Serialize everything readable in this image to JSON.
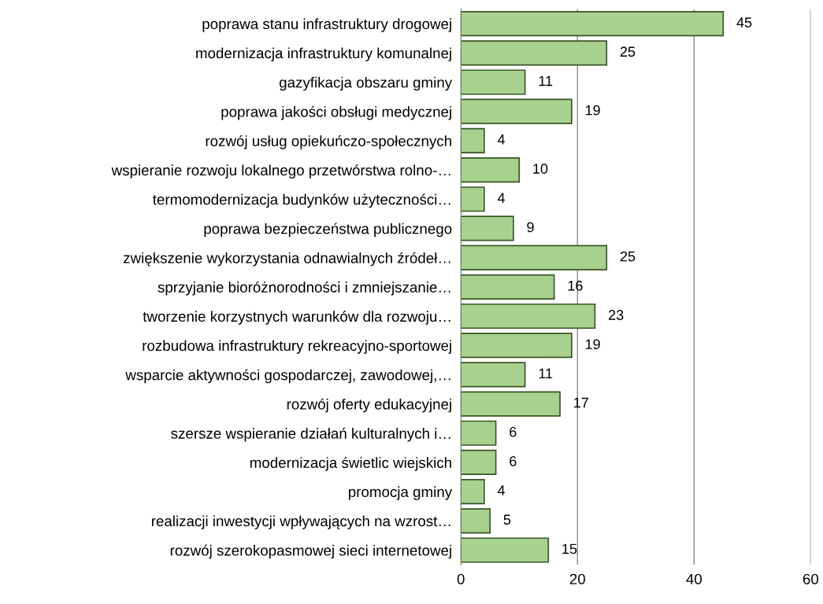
{
  "chart_data": {
    "type": "bar",
    "orientation": "horizontal",
    "categories": [
      "poprawa stanu infrastruktury drogowej",
      "modernizacja infrastruktury komunalnej",
      "gazyfikacja obszaru gminy",
      "poprawa jakości obsługi medycznej",
      "rozwój usług opiekuńczo-społecznych",
      "wspieranie rozwoju lokalnego przetwórstwa rolno-…",
      "termomodernizacja budynków użyteczności…",
      "poprawa bezpieczeństwa publicznego",
      "zwiększenie wykorzystania odnawialnych źródeł…",
      "sprzyjanie bioróżnorodności i zmniejszanie…",
      "tworzenie korzystnych warunków dla rozwoju…",
      "rozbudowa infrastruktury rekreacyjno-sportowej",
      "wsparcie aktywności gospodarczej, zawodowej,…",
      "rozwój oferty edukacyjnej",
      "szersze wspieranie działań kulturalnych i…",
      "modernizacja świetlic wiejskich",
      "promocja gminy",
      "realizacji inwestycji wpływających na wzrost…",
      "rozwój szerokopasmowej sieci internetowej"
    ],
    "values": [
      45,
      25,
      11,
      19,
      4,
      10,
      4,
      9,
      25,
      16,
      23,
      19,
      11,
      17,
      6,
      6,
      4,
      5,
      15
    ],
    "color": "#a9d18e",
    "xlim": [
      0,
      60
    ],
    "xticks": [
      0,
      20,
      40,
      60
    ],
    "grid": "x",
    "data_labels": true
  }
}
